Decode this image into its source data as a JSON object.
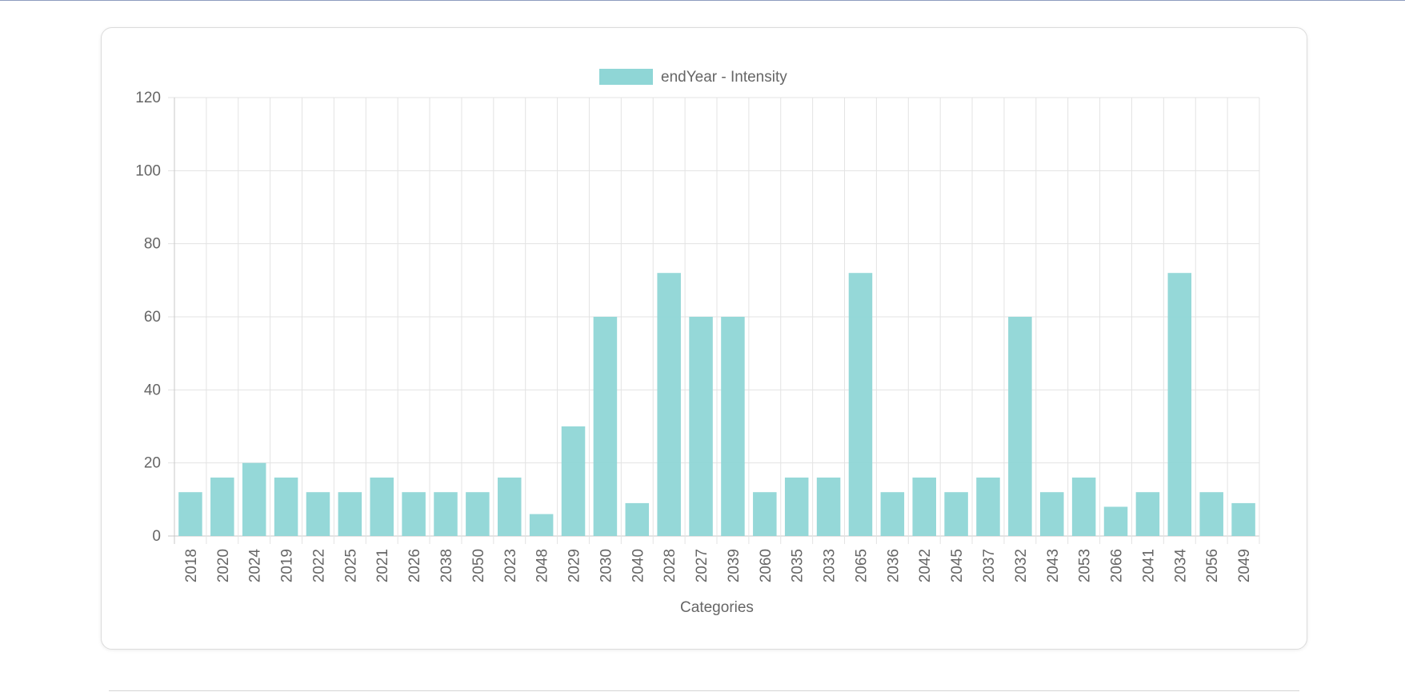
{
  "chart_data": {
    "type": "bar",
    "title": "",
    "xlabel": "Categories",
    "ylabel": "",
    "ylim": [
      0,
      120
    ],
    "yticks": [
      0,
      20,
      40,
      60,
      80,
      100,
      120
    ],
    "grid": true,
    "legend_position": "top-center",
    "categories": [
      "2018",
      "2020",
      "2024",
      "2019",
      "2022",
      "2025",
      "2021",
      "2026",
      "2038",
      "2050",
      "2023",
      "2048",
      "2029",
      "2030",
      "2040",
      "2028",
      "2027",
      "2039",
      "2060",
      "2035",
      "2033",
      "2065",
      "2036",
      "2042",
      "2045",
      "2037",
      "2032",
      "2043",
      "2053",
      "2066",
      "2041",
      "2034",
      "2056",
      "2049"
    ],
    "series": [
      {
        "name": "endYear - Intensity",
        "color": "#8fd6d6",
        "values": [
          12,
          16,
          20,
          16,
          12,
          12,
          16,
          12,
          12,
          12,
          16,
          6,
          30,
          60,
          9,
          72,
          60,
          60,
          12,
          16,
          16,
          72,
          12,
          16,
          12,
          16,
          60,
          12,
          16,
          8,
          12,
          72,
          12,
          9
        ]
      }
    ]
  }
}
